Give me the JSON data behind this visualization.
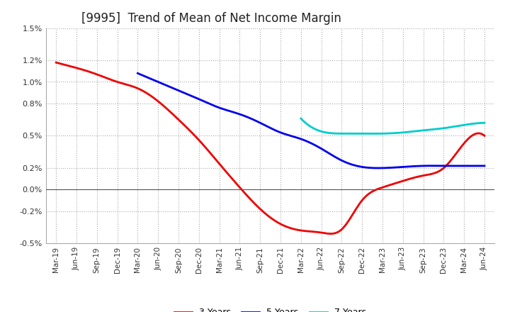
{
  "title": "[9995]  Trend of Mean of Net Income Margin",
  "title_fontsize": 12,
  "ylim": [
    -0.005,
    0.015
  ],
  "x_labels": [
    "Mar-19",
    "Jun-19",
    "Sep-19",
    "Dec-19",
    "Mar-20",
    "Jun-20",
    "Sep-20",
    "Dec-20",
    "Mar-21",
    "Jun-21",
    "Sep-21",
    "Dec-21",
    "Mar-22",
    "Jun-22",
    "Sep-22",
    "Dec-22",
    "Mar-23",
    "Jun-23",
    "Sep-23",
    "Dec-23",
    "Mar-24",
    "Jun-24"
  ],
  "series": {
    "3 Years": {
      "color": "#ee0000",
      "values": [
        1.18,
        1.13,
        1.07,
        1.0,
        0.94,
        0.82,
        0.65,
        0.46,
        0.24,
        0.02,
        -0.18,
        -0.32,
        -0.38,
        -0.4,
        -0.37,
        -0.1,
        0.02,
        0.08,
        0.13,
        0.2,
        0.43,
        0.5
      ]
    },
    "5 Years": {
      "color": "#0000ee",
      "values": [
        null,
        null,
        null,
        null,
        1.08,
        1.0,
        0.92,
        0.84,
        0.76,
        0.7,
        0.62,
        0.53,
        0.47,
        0.38,
        0.27,
        0.21,
        0.2,
        0.21,
        0.22,
        0.22,
        0.22,
        0.22
      ]
    },
    "7 Years": {
      "color": "#00cccc",
      "values": [
        null,
        null,
        null,
        null,
        null,
        null,
        null,
        null,
        null,
        null,
        null,
        null,
        0.66,
        0.54,
        0.52,
        0.52,
        0.52,
        0.53,
        0.55,
        0.57,
        0.6,
        0.62
      ]
    },
    "10 Years": {
      "color": "#006600",
      "values": [
        null,
        null,
        null,
        null,
        null,
        null,
        null,
        null,
        null,
        null,
        null,
        null,
        null,
        null,
        null,
        null,
        null,
        null,
        null,
        null,
        null,
        null
      ]
    }
  },
  "background_color": "#ffffff",
  "grid_color": "#aaaaaa",
  "line_width": 2.0
}
